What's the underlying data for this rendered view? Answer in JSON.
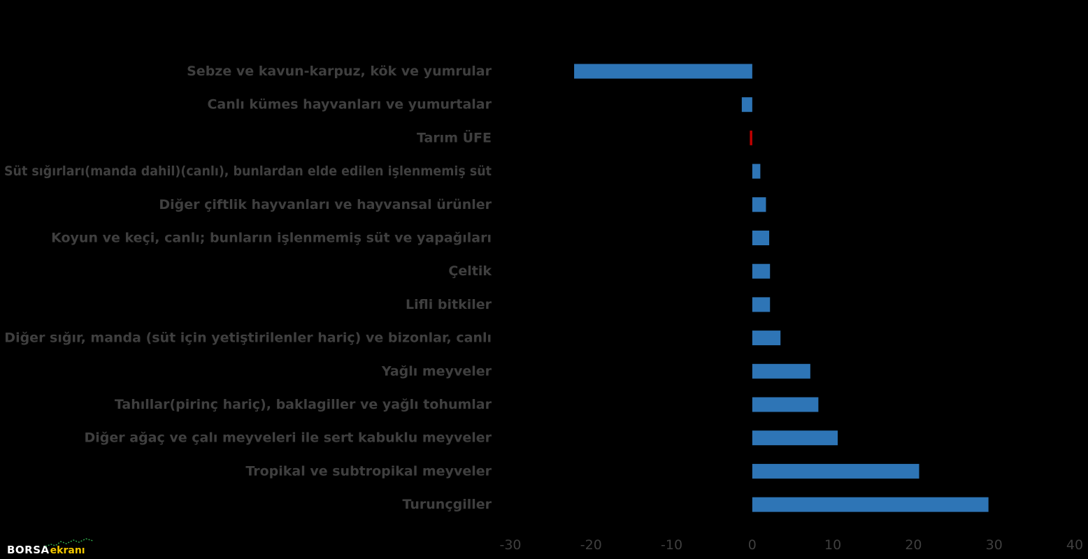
{
  "chart_data": {
    "type": "bar",
    "orientation": "horizontal",
    "categories": [
      "Sebze ve kavun-karpuz, kök ve yumrular",
      "Canlı kümes hayvanları ve yumurtalar",
      "Tarım ÜFE",
      "Süt sığırları(manda dahil)(canlı), bunlardan elde edilen işlenmemiş süt",
      "Diğer çiftlik hayvanları ve hayvansal ürünler",
      "Koyun ve keçi, canlı; bunların işlenmemiş süt ve yapağıları",
      "Çeltik",
      "Lifli bitkiler",
      "Diğer sığır, manda (süt için yetiştirilenler hariç) ve bizonlar, canlı",
      "Yağlı meyveler",
      "Tahıllar(pirinç hariç), baklagiller ve yağlı tohumlar",
      "Diğer ağaç ve çalı meyveleri ile sert kabuklu meyveler",
      "Tropikal ve subtropikal meyveler",
      "Turunçgiller"
    ],
    "values": [
      -22.1,
      -1.3,
      -0.3,
      1.0,
      1.7,
      2.1,
      2.2,
      2.2,
      3.5,
      7.2,
      8.2,
      10.6,
      20.7,
      29.3
    ],
    "bar_colors": [
      "#2e75b6",
      "#2e75b6",
      "#c00000",
      "#2e75b6",
      "#2e75b6",
      "#2e75b6",
      "#2e75b6",
      "#2e75b6",
      "#2e75b6",
      "#2e75b6",
      "#2e75b6",
      "#2e75b6",
      "#2e75b6",
      "#2e75b6"
    ],
    "xlim": [
      -30,
      40
    ],
    "xticks": [
      "-30",
      "-20",
      "-10",
      "0",
      "10",
      "20",
      "30",
      "40"
    ],
    "grid": false,
    "legend": "none",
    "title": "",
    "xlabel": "",
    "ylabel": ""
  },
  "colors": {
    "background": "#000000",
    "primary_bar": "#2e75b6",
    "highlight_bar": "#c00000",
    "label_text": "#3f3f3f"
  },
  "logo": {
    "part1": "BORSA",
    "part2": "ekranı"
  }
}
